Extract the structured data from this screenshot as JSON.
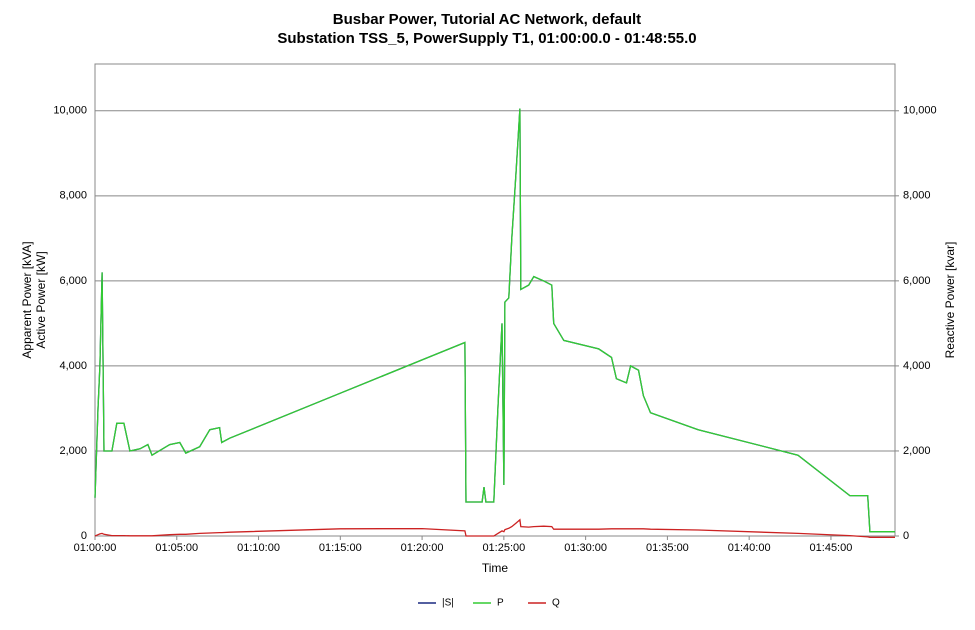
{
  "chart_data": {
    "type": "line",
    "title": "Busbar Power, Tutorial AC Network, default",
    "subtitle": "Substation TSS_5, PowerSupply T1, 01:00:00.0 - 01:48:55.0",
    "xlabel": "Time",
    "ylabel": [
      "Apparent Power [kVA]",
      "Active Power [kW]"
    ],
    "y2label": "Reactive Power [kvar]",
    "grid": true,
    "legend": "bottom",
    "xlim": [
      "01:00:00",
      "01:48:55"
    ],
    "xticks": [
      "01:00:00",
      "01:05:00",
      "01:10:00",
      "01:15:00",
      "01:20:00",
      "01:25:00",
      "01:30:00",
      "01:35:00",
      "01:40:00",
      "01:45:00"
    ],
    "ylim": [
      0,
      11100
    ],
    "yticks": [
      0,
      {
        "value": 2000,
        "label": "2,000"
      },
      {
        "value": 4000,
        "label": "4,000"
      },
      {
        "value": 6000,
        "label": "6,000"
      },
      {
        "value": 8000,
        "label": "8,000"
      },
      {
        "value": 10000,
        "label": "10,000"
      }
    ],
    "y2lim": [
      0,
      11100
    ],
    "y2ticks": [
      0,
      {
        "value": 2000,
        "label": "2,000"
      },
      {
        "value": 4000,
        "label": "4,000"
      },
      {
        "value": 6000,
        "label": "6,000"
      },
      {
        "value": 8000,
        "label": "8,000"
      },
      {
        "value": 10000,
        "label": "10,000"
      }
    ],
    "x": [
      "01:00:00",
      "01:00:11",
      "01:00:18",
      "01:00:26",
      "01:00:33",
      "01:01:02",
      "01:01:20",
      "01:01:46",
      "01:02:08",
      "01:02:45",
      "01:03:14",
      "01:03:29",
      "01:04:34",
      "01:05:11",
      "01:05:33",
      "01:06:24",
      "01:07:01",
      "01:07:37",
      "01:07:45",
      "01:08:14",
      "01:15:00",
      "01:20:00",
      "01:22:37",
      "01:22:41",
      "01:23:40",
      "01:23:47",
      "01:23:54",
      "01:24:23",
      "01:24:38",
      "01:24:53",
      "01:25:00",
      "01:25:04",
      "01:25:18",
      "01:25:29",
      "01:25:44",
      "01:25:59",
      "01:26:02",
      "01:26:31",
      "01:26:50",
      "01:27:26",
      "01:27:56",
      "01:28:03",
      "01:28:40",
      "01:30:48",
      "01:31:35",
      "01:31:53",
      "01:32:30",
      "01:32:45",
      "01:33:14",
      "01:33:32",
      "01:33:58",
      "01:36:53",
      "01:42:59",
      "01:46:09",
      "01:47:15",
      "01:47:23",
      "01:48:55"
    ],
    "series": [
      {
        "name": "|S|",
        "color": "#1a2a80",
        "values": [
          900,
          3000,
          4000,
          6200,
          2000,
          2000,
          2650,
          2650,
          2000,
          2050,
          2150,
          1900,
          2150,
          2200,
          1950,
          2100,
          2500,
          2550,
          2200,
          2300,
          3358,
          4141,
          4550,
          800,
          800,
          1150,
          800,
          800,
          3000,
          5000,
          1200,
          5500,
          5600,
          7000,
          8500,
          10050,
          5800,
          5900,
          6100,
          6000,
          5900,
          5000,
          4600,
          4400,
          4200,
          3700,
          3600,
          4000,
          3900,
          3300,
          2900,
          2500,
          1900,
          950,
          950,
          100,
          100
        ]
      },
      {
        "name": "P",
        "color": "#33cc33",
        "values": [
          900,
          3000,
          4000,
          6200,
          2000,
          2000,
          2650,
          2650,
          2000,
          2050,
          2150,
          1900,
          2150,
          2200,
          1950,
          2100,
          2500,
          2550,
          2200,
          2300,
          3358,
          4141,
          4550,
          800,
          800,
          1150,
          800,
          800,
          3000,
          5000,
          1200,
          5500,
          5600,
          7000,
          8500,
          10050,
          5800,
          5900,
          6100,
          6000,
          5900,
          5000,
          4600,
          4400,
          4200,
          3700,
          3600,
          4000,
          3900,
          3300,
          2900,
          2500,
          1900,
          950,
          950,
          100,
          100
        ]
      },
      {
        "name": "Q",
        "color": "#cc2222",
        "axis": "y2",
        "values": [
          0,
          30,
          50,
          60,
          40,
          10,
          10,
          10,
          5,
          5,
          5,
          5,
          30,
          40,
          40,
          60,
          70,
          80,
          80,
          90,
          170,
          175,
          120,
          0,
          0,
          0,
          0,
          0,
          60,
          120,
          100,
          150,
          180,
          220,
          300,
          380,
          220,
          210,
          220,
          230,
          220,
          160,
          160,
          160,
          170,
          170,
          170,
          170,
          170,
          170,
          160,
          140,
          60,
          10,
          -20,
          -30,
          -30
        ]
      }
    ]
  }
}
